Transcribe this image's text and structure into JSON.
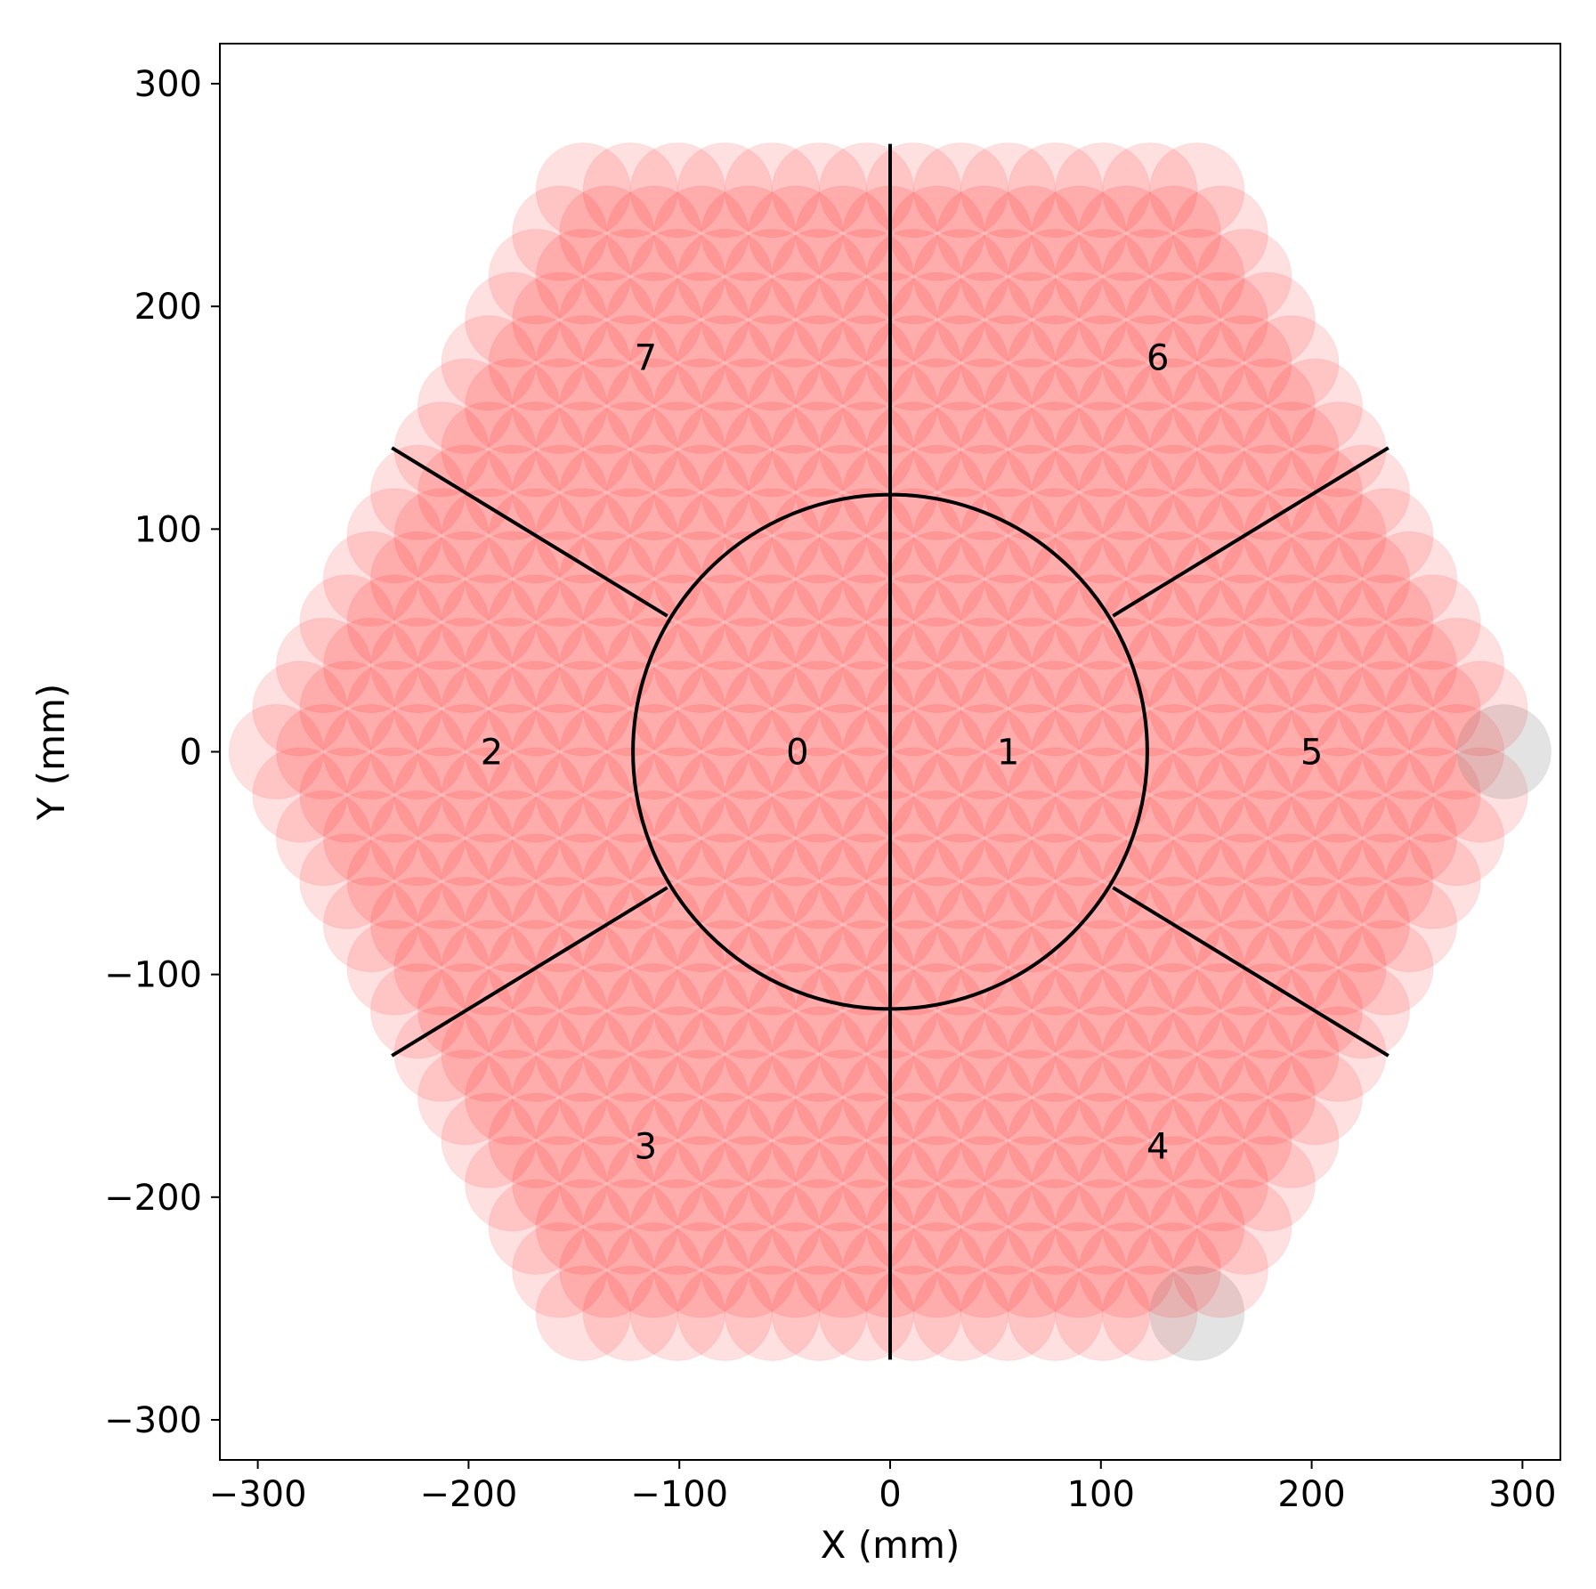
{
  "chart_data": {
    "type": "scatter",
    "title": "",
    "xlabel": "X (mm)",
    "ylabel": "Y (mm)",
    "xlim": [
      -318,
      318
    ],
    "ylim": [
      -318,
      318
    ],
    "xticks": [
      -300,
      -200,
      -100,
      0,
      100,
      200,
      300
    ],
    "yticks": [
      -300,
      -200,
      -100,
      0,
      100,
      200,
      300
    ],
    "xtick_labels": [
      "−300",
      "−200",
      "−100",
      "0",
      "100",
      "200",
      "300"
    ],
    "ytick_labels": [
      "−300",
      "−200",
      "−100",
      "0",
      "100",
      "200",
      "300"
    ],
    "grid": false,
    "positioner_patrol_circles": {
      "description_visible": false,
      "lattice_pitch_mm": 22.4,
      "patrol_radius_mm": 22.4,
      "hexagon_vertex_radius_mm": 291,
      "fill_color": "#ff0000",
      "fill_alpha": 0.12,
      "inactive_fill_color": "#808080",
      "inactive_positions_mm": [
        [
          291,
          0
        ],
        [
          145.5,
          -252
        ]
      ]
    },
    "central_circle": {
      "center": [
        0,
        0
      ],
      "radius": 122,
      "color": "#000000"
    },
    "boundary_lines": [
      {
        "from": [
          0,
          -273
        ],
        "to": [
          0,
          273
        ]
      },
      {
        "from": [
          -105.7,
          61
        ],
        "to": [
          -236.4,
          136.5
        ]
      },
      {
        "from": [
          105.7,
          61
        ],
        "to": [
          236.4,
          136.5
        ]
      },
      {
        "from": [
          -105.7,
          -61
        ],
        "to": [
          -236.4,
          -136.5
        ]
      },
      {
        "from": [
          105.7,
          -61
        ],
        "to": [
          236.4,
          -136.5
        ]
      }
    ],
    "region_labels": [
      {
        "text": "0",
        "x": -44,
        "y": 0
      },
      {
        "text": "1",
        "x": 56,
        "y": 0
      },
      {
        "text": "2",
        "x": -189,
        "y": 0
      },
      {
        "text": "3",
        "x": -116,
        "y": -177
      },
      {
        "text": "4",
        "x": 127,
        "y": -177
      },
      {
        "text": "5",
        "x": 200,
        "y": 0
      },
      {
        "text": "6",
        "x": 127,
        "y": 177
      },
      {
        "text": "7",
        "x": -116,
        "y": 177
      }
    ]
  }
}
